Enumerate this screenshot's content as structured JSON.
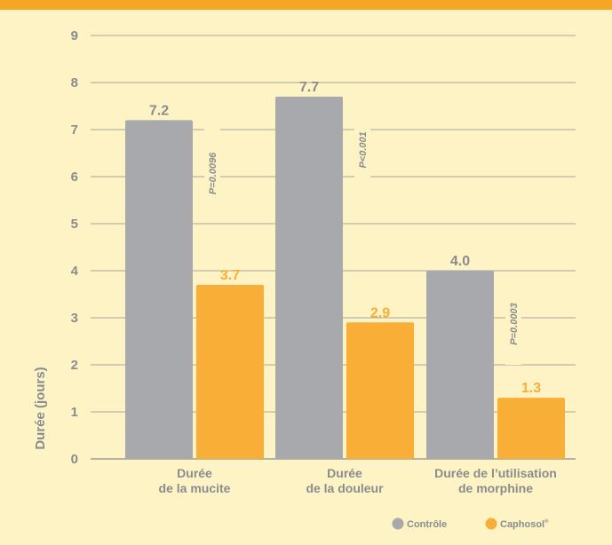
{
  "chart_data": {
    "type": "bar",
    "ylabel": "Durée (jours)",
    "ylim": [
      0,
      9
    ],
    "yticks": [
      "0",
      "1",
      "2",
      "3",
      "4",
      "5",
      "6",
      "7",
      "8",
      "9"
    ],
    "categories": [
      [
        "Durée",
        "de la mucite"
      ],
      [
        "Durée",
        "de la douleur"
      ],
      [
        "Durée de l’utilisation",
        "de morphine"
      ]
    ],
    "series": [
      {
        "name": "Contrôle",
        "values": [
          7.2,
          7.7,
          4.0
        ],
        "labels": [
          "7.2",
          "7.7",
          "4.0"
        ],
        "color": "#a7a9ac"
      },
      {
        "name": "Caphosol",
        "values": [
          3.7,
          2.9,
          1.3
        ],
        "labels": [
          "3.7",
          "2.9",
          "1.3"
        ],
        "color": "#f9ae37"
      }
    ],
    "p_values": [
      "P=0.0096",
      "P<0.001",
      "P=0.0003"
    ],
    "legend_position": "bottom-right",
    "grid": true
  },
  "colors": {
    "background": "#fdf3c4",
    "top_band": "#f5a623",
    "gridline": "#8a8c8e",
    "text": "#8a8c8e"
  },
  "legend": {
    "trademark": "®"
  }
}
